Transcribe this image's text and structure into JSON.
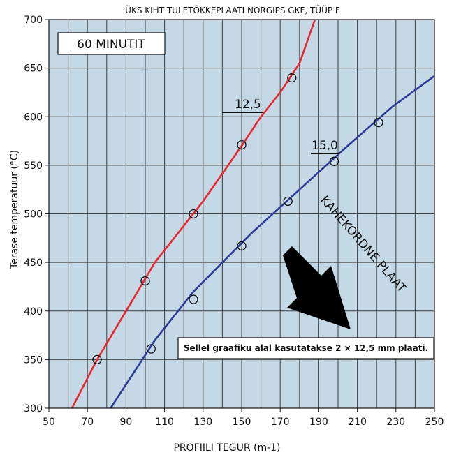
{
  "chart_data": {
    "type": "line",
    "title": "ÜKS KIHT TULETÕKKEPLAATI NORGIPS GKF, TÜÜP F",
    "xlabel": "PROFIILI TEGUR (m-1)",
    "ylabel": "Terase temperatuur (°C)",
    "xlim": [
      50,
      250
    ],
    "ylim": [
      300,
      700
    ],
    "x_ticks": [
      "50",
      "70",
      "90",
      "110",
      "130",
      "150",
      "170",
      "190",
      "210",
      "230",
      "250"
    ],
    "y_ticks": [
      "300",
      "350",
      "400",
      "450",
      "500",
      "550",
      "600",
      "650",
      "700"
    ],
    "grid": true,
    "series": [
      {
        "name": "12,5",
        "color": "#e8262b",
        "line_x": [
          62,
          75,
          90,
          105,
          130,
          150,
          160,
          170,
          180,
          188
        ],
        "line_y": [
          300,
          350,
          400,
          450,
          513,
          570,
          600,
          625,
          655,
          700
        ],
        "points_x": [
          75,
          100,
          125,
          150,
          176
        ],
        "points_y": [
          350,
          431,
          500,
          571,
          640
        ]
      },
      {
        "name": "15,0",
        "color": "#2b3a98",
        "line_x": [
          82,
          105,
          125,
          155,
          180,
          205,
          228,
          250
        ],
        "line_y": [
          300,
          370,
          420,
          480,
          525,
          570,
          610,
          642
        ],
        "points_x": [
          103,
          125,
          150,
          174,
          198,
          221
        ],
        "points_y": [
          361,
          412,
          467,
          513,
          554,
          594
        ]
      }
    ],
    "annotations": {
      "duration_box": "60 MINUTIT",
      "diagonal_label": "KAHEKORDNE PLAAT",
      "note": "Sellel graafiku alal kasutatakse 2 × 12,5 mm plaati."
    },
    "colors": {
      "plot_background": "#c5d8e6",
      "grid": "#3e3e3e"
    }
  }
}
